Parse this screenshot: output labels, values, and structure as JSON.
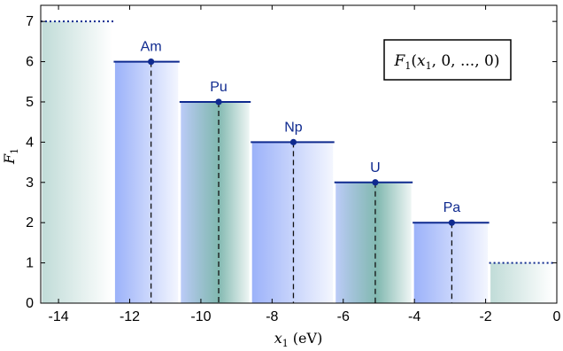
{
  "chart_data": {
    "type": "bar",
    "title": "",
    "legend": "F_1(x_1, 0, ..., 0)",
    "xlabel": "x_1 (eV)",
    "ylabel": "F_1",
    "xlim": [
      -14.5,
      0
    ],
    "ylim": [
      0,
      7.4
    ],
    "xticks": [
      -14,
      -12,
      -10,
      -8,
      -6,
      -4,
      -2,
      0
    ],
    "yticks": [
      0,
      1,
      2,
      3,
      4,
      5,
      6,
      7
    ],
    "steps": [
      {
        "label": "",
        "x_start": -14.5,
        "x_end": -12.45,
        "value": 7,
        "marker_x": null,
        "style": "dotted",
        "fill": "teal"
      },
      {
        "label": "Am",
        "x_start": -12.45,
        "x_end": -10.6,
        "value": 6,
        "marker_x": -11.4,
        "style": "solid",
        "fill": "blue"
      },
      {
        "label": "Pu",
        "x_start": -10.6,
        "x_end": -8.6,
        "value": 5,
        "marker_x": -9.5,
        "style": "solid",
        "fill": "teal"
      },
      {
        "label": "Np",
        "x_start": -8.6,
        "x_end": -6.25,
        "value": 4,
        "marker_x": -7.4,
        "style": "solid",
        "fill": "blue"
      },
      {
        "label": "U",
        "x_start": -6.25,
        "x_end": -4.05,
        "value": 3,
        "marker_x": -5.1,
        "style": "solid",
        "fill": "teal"
      },
      {
        "label": "Pa",
        "x_start": -4.05,
        "x_end": -1.9,
        "value": 2,
        "marker_x": -2.95,
        "style": "solid",
        "fill": "blue"
      },
      {
        "label": "",
        "x_start": -1.9,
        "x_end": -0.05,
        "value": 1,
        "marker_x": null,
        "style": "dotted",
        "fill": "teal"
      }
    ],
    "colors": {
      "line": "#0f2a8f",
      "blue_fill": "#8aa4f8",
      "teal_fill": "#2f8a7c"
    }
  }
}
